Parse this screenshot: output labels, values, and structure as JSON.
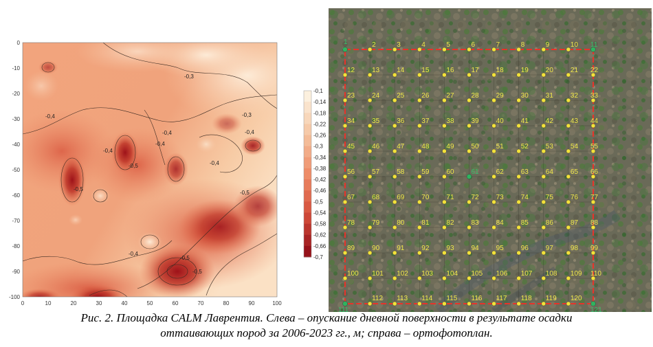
{
  "left_plot": {
    "x_ticks": [
      "0",
      "10",
      "20",
      "30",
      "40",
      "50",
      "60",
      "70",
      "80",
      "90",
      "100"
    ],
    "y_ticks": [
      "0",
      "-10",
      "-20",
      "-30",
      "-40",
      "-50",
      "-60",
      "-70",
      "-80",
      "-90",
      "-100"
    ],
    "contour_labels": [
      "-0,3",
      "-0,4",
      "-0,3",
      "-0,4",
      "-0,4",
      "-0,5",
      "-0,4",
      "-0,4",
      "-0,5",
      "-0,5",
      "-0,4",
      "-0,5",
      "-0,5",
      "-0,4"
    ],
    "colors": {
      "light": "#fbe4cc",
      "mid": "#ef8e66",
      "dark": "#a8131a"
    }
  },
  "legend": {
    "labels": [
      "-0,1",
      "-0,14",
      "-0,18",
      "-0,22",
      "-0,26",
      "-0,3",
      "-0,34",
      "-0,38",
      "-0,42",
      "-0,46",
      "-0,5",
      "-0,54",
      "-0,58",
      "-0,62",
      "-0,66",
      "-0,7"
    ]
  },
  "ortho": {
    "points": [
      "1",
      "2",
      "3",
      "4",
      "5",
      "6",
      "7",
      "8",
      "9",
      "10",
      "11",
      "12",
      "13",
      "14",
      "15",
      "16",
      "17",
      "18",
      "19",
      "20",
      "21",
      "22",
      "23",
      "24",
      "25",
      "26",
      "27",
      "28",
      "29",
      "30",
      "31",
      "32",
      "33",
      "34",
      "35",
      "36",
      "37",
      "38",
      "39",
      "40",
      "41",
      "42",
      "43",
      "44",
      "45",
      "46",
      "47",
      "48",
      "49",
      "50",
      "51",
      "52",
      "53",
      "54",
      "55",
      "56",
      "57",
      "58",
      "59",
      "60",
      "61",
      "62",
      "63",
      "64",
      "65",
      "66",
      "67",
      "68",
      "69",
      "70",
      "71",
      "72",
      "73",
      "74",
      "75",
      "76",
      "77",
      "78",
      "79",
      "80",
      "81",
      "82",
      "83",
      "84",
      "85",
      "86",
      "87",
      "88",
      "89",
      "90",
      "91",
      "92",
      "93",
      "94",
      "95",
      "96",
      "97",
      "98",
      "99",
      "100",
      "101",
      "102",
      "103",
      "104",
      "105",
      "106",
      "107",
      "108",
      "109",
      "110",
      "111",
      "112",
      "113",
      "114",
      "115",
      "116",
      "117",
      "118",
      "119",
      "120",
      "121"
    ],
    "colors": {
      "boundary": "#e8332a",
      "point": "#f3e23a",
      "marker": "#2fb35f"
    }
  },
  "caption": {
    "line1": "Рис. 2. Площадка CALM Лаврентия. Слева – опускание дневной поверхности в результате осадки",
    "line2": "оттаивающих пород за 2006-2023 гг., м; справа – ортофотоплан."
  }
}
